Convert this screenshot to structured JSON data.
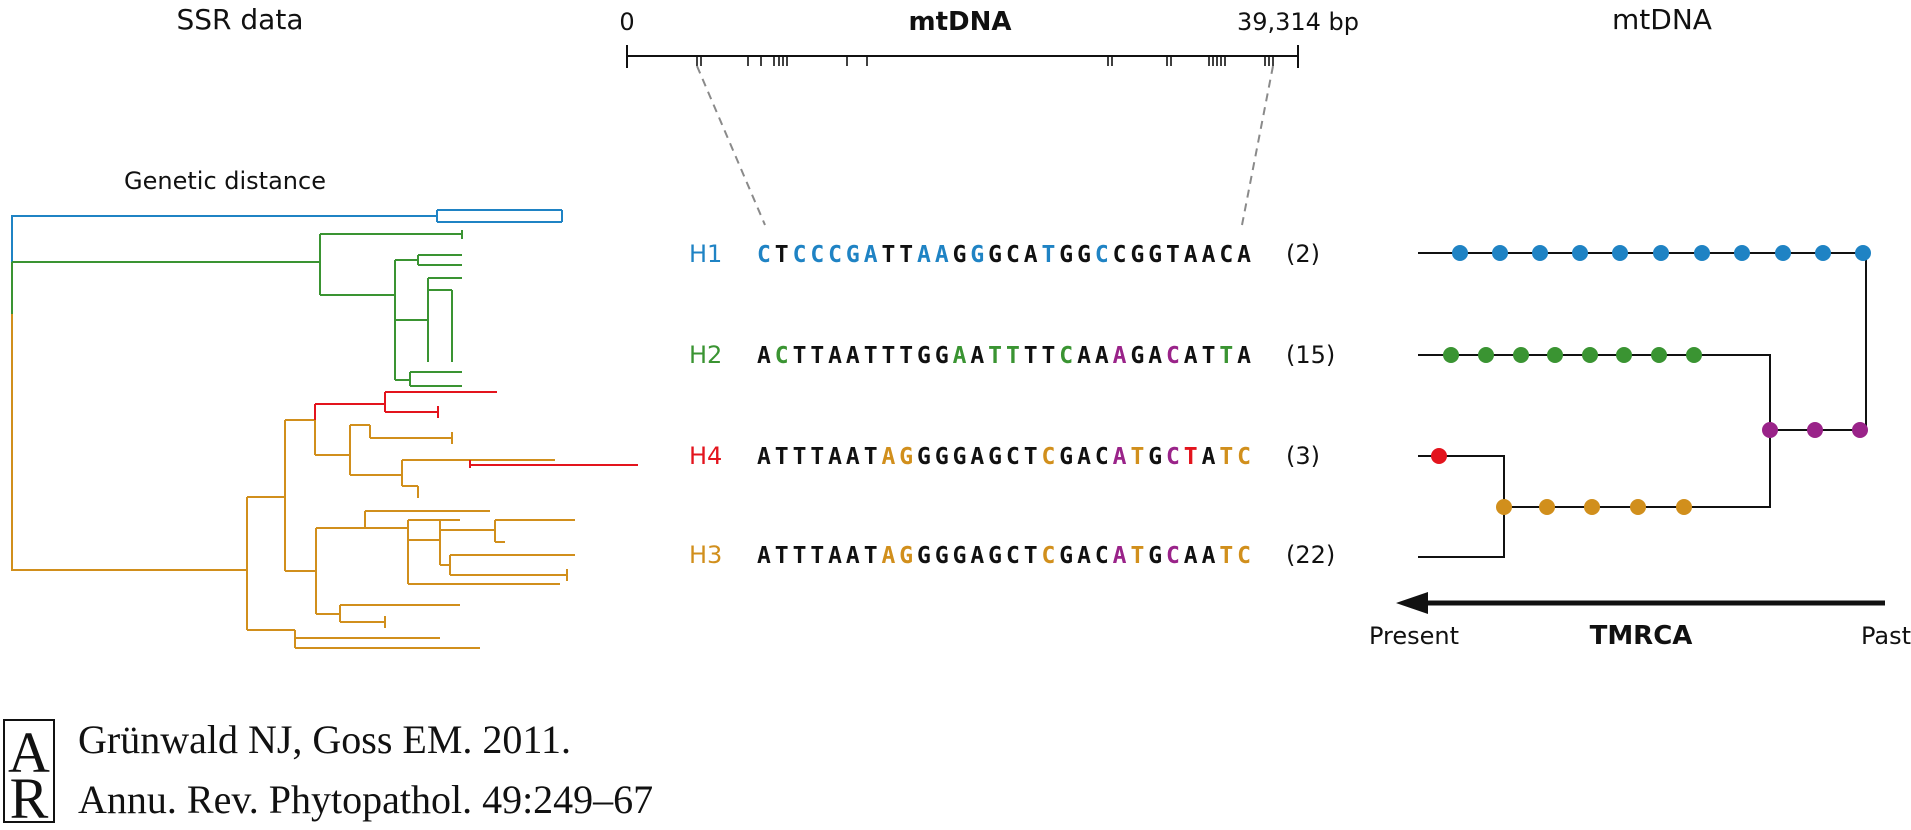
{
  "colors": {
    "blue": "#1f83c4",
    "green": "#3a9432",
    "red": "#e3141d",
    "orange": "#d18f1c",
    "purple": "#9a2389",
    "black": "#111111",
    "gray": "#8a8a8a"
  },
  "headers": {
    "ssr": "SSR data",
    "mtdna_center": "mtDNA",
    "mtdna_right": "mtDNA"
  },
  "scale": {
    "start_label": "0",
    "end_label": "39,314 bp"
  },
  "genetic_distance_label": "Genetic distance",
  "haplotypes": [
    {
      "id": "H1",
      "color": "blue",
      "count": "(2)",
      "sequence": "CTCCCGATTAAGGGCATGGCCGGTAACA",
      "colors": "BkBBBBBkkBBkBkkkBkkBkkkkkkkk"
    },
    {
      "id": "H2",
      "color": "green",
      "count": "(15)",
      "sequence": "ACTTAATTTGGAATTTTCAAAGACATTA",
      "colors": "kGkkkkkkkkkGkGGkkGkkPkkPkkGk"
    },
    {
      "id": "H4",
      "color": "red",
      "count": "(3)",
      "sequence": "ATTTAATAGGGGAGCTCGACATGCTATC",
      "colors": "kkkkkkkOOkkkkkkkOkkkPOkPRkOO"
    },
    {
      "id": "H3",
      "color": "orange",
      "count": "(22)",
      "sequence": "ATTTAATAGGGGAGCTCGACATGCAATC",
      "colors": "kkkkkkkOOkkkkkkkOkkkPOkPkkOO"
    }
  ],
  "timeline": {
    "present": "Present",
    "tmrca": "TMRCA",
    "past": "Past"
  },
  "citation": {
    "logo_text": "AR",
    "line1": "Grünwald NJ, Goss EM. 2011.",
    "line2": "Annu. Rev. Phytopathol. 49:249–67"
  }
}
